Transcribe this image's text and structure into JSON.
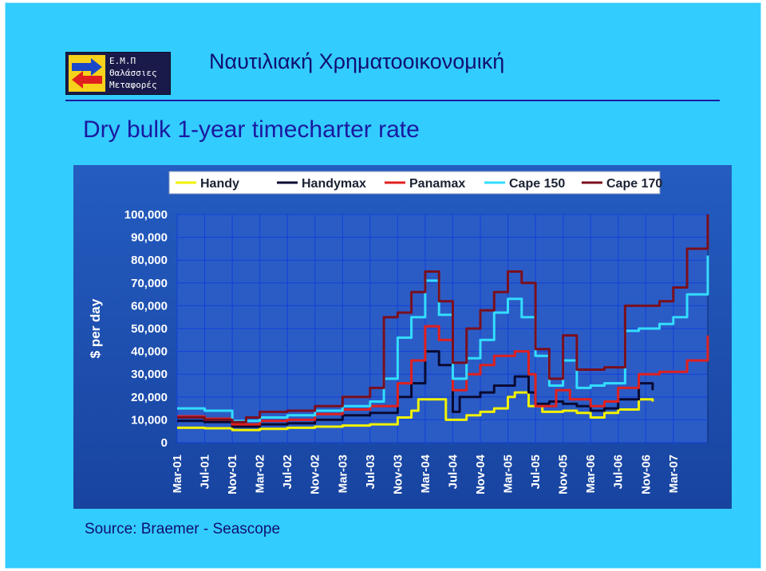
{
  "header": {
    "app_title": "Ναυτιλιακή Χρηματοοικονομική",
    "logo_lines": [
      "Ε.Μ.Π",
      "Θαλάσσιες",
      "Μεταφορές"
    ]
  },
  "slide": {
    "title": "Dry bulk 1-year timecharter rate",
    "source": "Source: Braemer - Seascope"
  },
  "colors": {
    "handy": "#f2f200",
    "handymax": "#0a0a33",
    "panamax": "#e0201e",
    "cape150": "#33ddff",
    "cape170": "#7a0f1e"
  },
  "chart_data": {
    "type": "line",
    "title": "",
    "xlabel": "",
    "ylabel": "$ per day",
    "ylim": [
      0,
      100000
    ],
    "xlim": [
      "2001-03",
      "2007-08"
    ],
    "grid": true,
    "legend_position": "top",
    "y_ticks": [
      "0",
      "10,000",
      "20,000",
      "30,000",
      "40,000",
      "50,000",
      "60,000",
      "70,000",
      "80,000",
      "90,000",
      "100,000"
    ],
    "x_ticks": [
      "Mar-01",
      "Jul-01",
      "Nov-01",
      "Mar-02",
      "Jul-02",
      "Nov-02",
      "Mar-03",
      "Jul-03",
      "Nov-03",
      "Mar-04",
      "Jul-04",
      "Nov-04",
      "Mar-05",
      "Jul-05",
      "Nov-05",
      "Mar-06",
      "Jul-06",
      "Nov-06",
      "Mar-07"
    ],
    "x_tick_dates": [
      "2001-03",
      "2001-07",
      "2001-11",
      "2002-03",
      "2002-07",
      "2002-11",
      "2003-03",
      "2003-07",
      "2003-11",
      "2004-03",
      "2004-07",
      "2004-11",
      "2005-03",
      "2005-07",
      "2005-11",
      "2006-03",
      "2006-07",
      "2006-11",
      "2007-03"
    ],
    "series": [
      {
        "name": "Handy",
        "x": [
          "2001-03",
          "2001-07",
          "2001-11",
          "2002-03",
          "2002-07",
          "2002-11",
          "2003-03",
          "2003-07",
          "2003-11",
          "2004-01",
          "2004-02",
          "2004-04",
          "2004-06",
          "2004-09",
          "2004-11",
          "2005-01",
          "2005-03",
          "2005-04",
          "2005-06",
          "2005-08",
          "2005-11",
          "2006-01",
          "2006-03",
          "2006-05",
          "2006-07",
          "2006-10",
          "2006-12"
        ],
        "values": [
          6500,
          6300,
          5500,
          6000,
          6500,
          7000,
          7500,
          8000,
          11000,
          14000,
          19000,
          19000,
          10000,
          12000,
          13500,
          15000,
          20000,
          22000,
          16000,
          13500,
          14000,
          13000,
          11000,
          13000,
          14500,
          19000,
          18000
        ]
      },
      {
        "name": "Handymax",
        "x": [
          "2001-03",
          "2001-07",
          "2001-11",
          "2002-03",
          "2002-07",
          "2002-11",
          "2003-03",
          "2003-07",
          "2003-11",
          "2004-01",
          "2004-03",
          "2004-05",
          "2004-07",
          "2004-08",
          "2004-11",
          "2005-01",
          "2005-04",
          "2005-06",
          "2005-07",
          "2005-09",
          "2005-11",
          "2006-01",
          "2006-03",
          "2006-05",
          "2006-07",
          "2006-10",
          "2006-12"
        ],
        "values": [
          9500,
          9000,
          7000,
          8000,
          8500,
          10000,
          12000,
          13000,
          20000,
          26000,
          40000,
          34000,
          13500,
          20000,
          22000,
          25000,
          29000,
          22000,
          17000,
          18000,
          17000,
          16000,
          14000,
          15000,
          19000,
          26000,
          23000
        ]
      },
      {
        "name": "Panamax",
        "x": [
          "2001-03",
          "2001-07",
          "2001-11",
          "2002-03",
          "2002-07",
          "2002-11",
          "2003-03",
          "2003-07",
          "2003-11",
          "2004-01",
          "2004-03",
          "2004-05",
          "2004-07",
          "2004-09",
          "2004-11",
          "2005-01",
          "2005-04",
          "2005-06",
          "2005-07",
          "2005-10",
          "2005-12",
          "2006-03",
          "2006-05",
          "2006-07",
          "2006-10",
          "2007-01",
          "2007-05",
          "2007-08"
        ],
        "values": [
          11500,
          10500,
          8000,
          9500,
          10000,
          12500,
          14500,
          16000,
          26000,
          36000,
          51000,
          45000,
          23000,
          30000,
          34000,
          38000,
          40000,
          30000,
          16000,
          23000,
          19000,
          16000,
          18000,
          24000,
          30000,
          31000,
          36000,
          47000
        ]
      },
      {
        "name": "Cape 150",
        "x": [
          "2001-03",
          "2001-07",
          "2001-11",
          "2002-03",
          "2002-07",
          "2002-11",
          "2003-03",
          "2003-07",
          "2003-09",
          "2003-11",
          "2004-01",
          "2004-03",
          "2004-05",
          "2004-07",
          "2004-09",
          "2004-11",
          "2005-01",
          "2005-03",
          "2005-05",
          "2005-07",
          "2005-09",
          "2005-11",
          "2006-01",
          "2006-03",
          "2006-05",
          "2006-08",
          "2006-10",
          "2007-01",
          "2007-03",
          "2007-05",
          "2007-08"
        ],
        "values": [
          15000,
          14000,
          9500,
          11000,
          12000,
          14000,
          16000,
          18000,
          28000,
          46000,
          55000,
          71000,
          56000,
          28000,
          37000,
          45000,
          57000,
          63000,
          55000,
          38000,
          25000,
          36000,
          24000,
          25000,
          26000,
          49000,
          50000,
          52000,
          55000,
          65000,
          82000
        ]
      },
      {
        "name": "Cape 170",
        "x": [
          "2001-03",
          "2001-07",
          "2001-11",
          "2002-01",
          "2002-03",
          "2002-07",
          "2002-11",
          "2003-03",
          "2003-07",
          "2003-09",
          "2003-11",
          "2004-01",
          "2004-03",
          "2004-05",
          "2004-07",
          "2004-09",
          "2004-11",
          "2005-01",
          "2005-03",
          "2005-05",
          "2005-07",
          "2005-09",
          "2005-11",
          "2006-01",
          "2006-03",
          "2006-05",
          "2006-08",
          "2006-10",
          "2007-01",
          "2007-03",
          "2007-05",
          "2007-08"
        ],
        "values": [
          11000,
          10000,
          9000,
          11000,
          13500,
          14000,
          16000,
          20000,
          24000,
          55000,
          57000,
          66000,
          75000,
          62000,
          35000,
          50000,
          58000,
          66000,
          75000,
          70000,
          41000,
          28000,
          47000,
          32000,
          32000,
          33000,
          60000,
          60000,
          62000,
          68000,
          85000,
          100000
        ]
      }
    ]
  }
}
